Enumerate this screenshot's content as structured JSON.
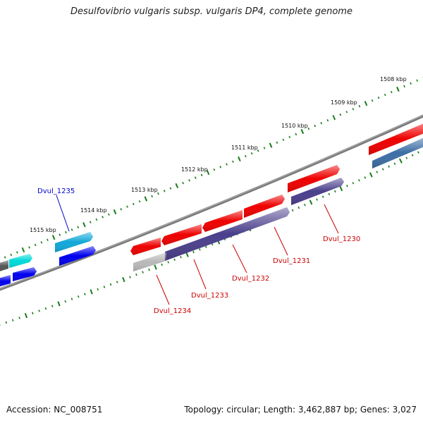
{
  "title": "Desulfovibrio vulgaris subsp. vulgaris DP4, complete genome",
  "footer": {
    "accession": "Accession: NC_008751",
    "topology": "Topology: circular; Length: 3,462,887 bp; Genes: 3,027"
  },
  "scale_labels": [
    "1508 kbp",
    "1509 kbp",
    "1510 kbp",
    "1511 kbp",
    "1512 kbp",
    "1513 kbp",
    "1514 kbp",
    "1515 kbp"
  ],
  "gene_labels": [
    {
      "text": "Dvul_1235",
      "color": "#0000cc"
    },
    {
      "text": "Dvul_1234",
      "color": "#cc0000"
    },
    {
      "text": "Dvul_1233",
      "color": "#cc0000"
    },
    {
      "text": "Dvul_1232",
      "color": "#cc0000"
    },
    {
      "text": "Dvul_1231",
      "color": "#cc0000"
    },
    {
      "text": "Dvul_1230",
      "color": "#cc0000"
    }
  ],
  "colors": {
    "backbone": "#808080",
    "tick": "#1a7a1a",
    "cds_red": "#ee0000",
    "cds_purple": "#4a3f8c",
    "cds_blue": "#0000ee",
    "cds_cyan": "#00cccc",
    "cds_steel": "#3c6ea5",
    "cds_gray": "#aaaaaa",
    "cds_dark": "#555555"
  }
}
